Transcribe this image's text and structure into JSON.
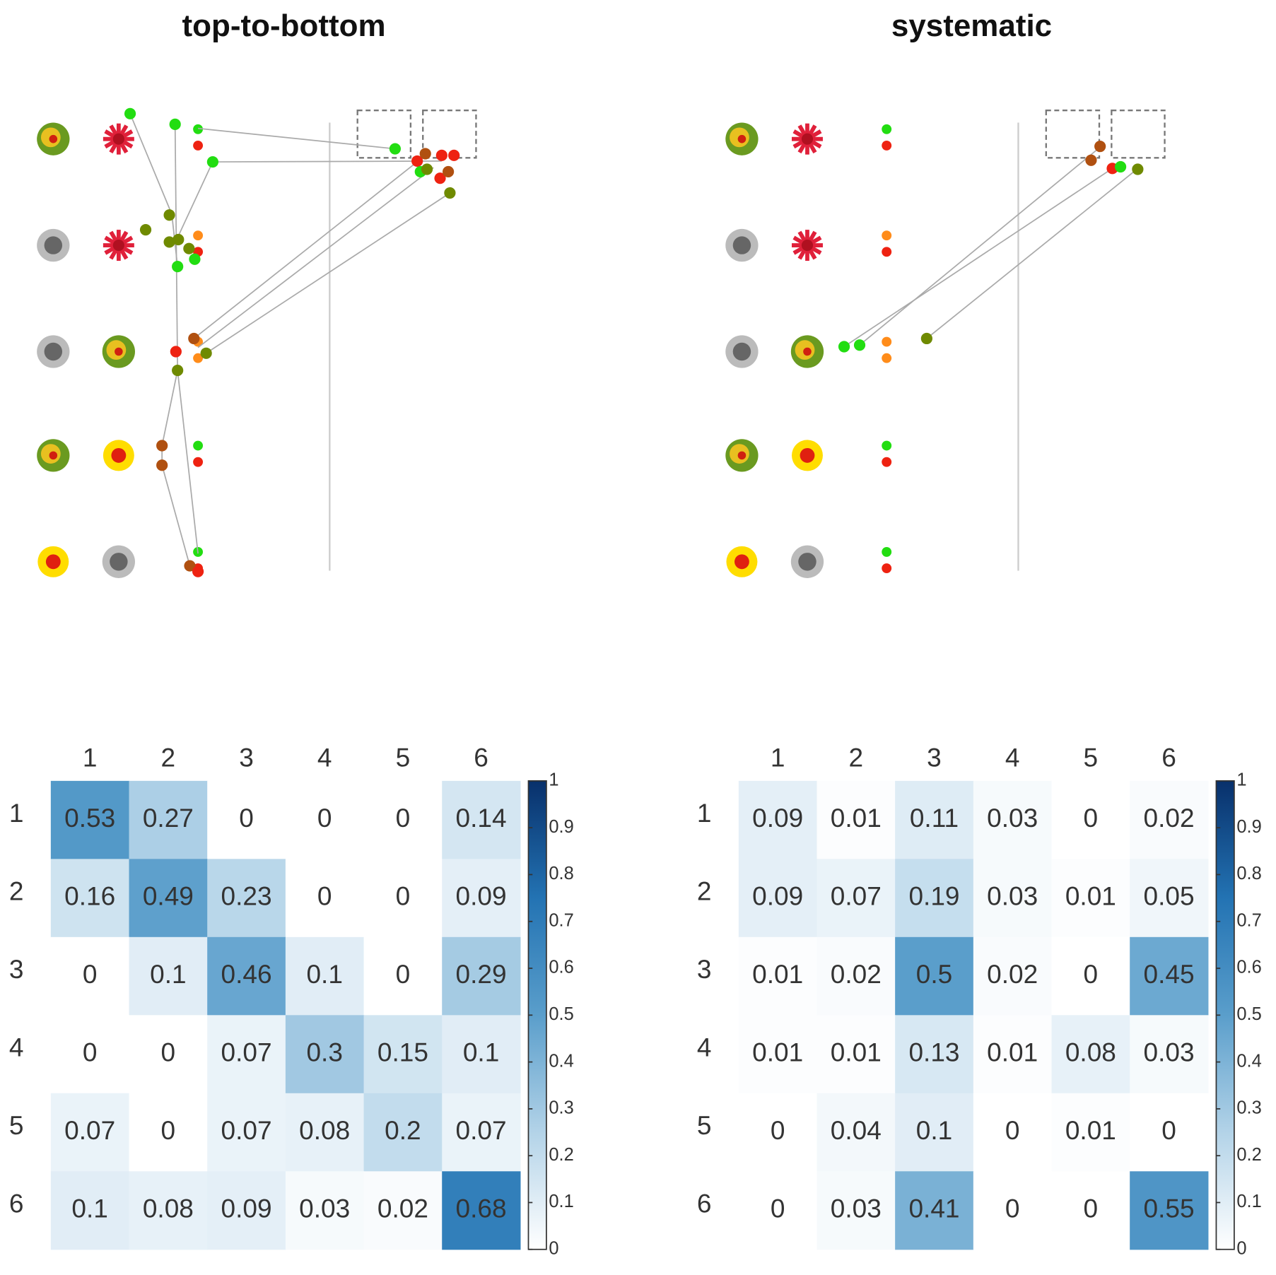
{
  "panels": [
    {
      "title": "top-to-bottom"
    },
    {
      "title": "systematic"
    }
  ],
  "chart_data": [
    {
      "type": "heatmap",
      "colormap": "Blues",
      "categories": [
        "1",
        "2",
        "3",
        "4",
        "5",
        "6"
      ],
      "rows": [
        "1",
        "2",
        "3",
        "4",
        "5",
        "6"
      ],
      "values": [
        [
          0.53,
          0.27,
          0,
          0,
          0,
          0.14
        ],
        [
          0.16,
          0.49,
          0.23,
          0,
          0,
          0.09
        ],
        [
          0,
          0.1,
          0.46,
          0.1,
          0,
          0.29
        ],
        [
          0,
          0,
          0.07,
          0.3,
          0.15,
          0.1
        ],
        [
          0.07,
          0,
          0.07,
          0.08,
          0.2,
          0.07
        ],
        [
          0.1,
          0.08,
          0.09,
          0.03,
          0.02,
          0.68
        ]
      ],
      "zlim": [
        0,
        1
      ],
      "zticks": [
        0,
        0.1,
        0.2,
        0.3,
        0.4,
        0.5,
        0.6,
        0.7,
        0.8,
        0.9,
        1
      ]
    },
    {
      "type": "heatmap",
      "colormap": "Blues",
      "categories": [
        "1",
        "2",
        "3",
        "4",
        "5",
        "6"
      ],
      "rows": [
        "1",
        "2",
        "3",
        "4",
        "5",
        "6"
      ],
      "values": [
        [
          0.09,
          0.01,
          0.11,
          0.03,
          0,
          0.02
        ],
        [
          0.09,
          0.07,
          0.19,
          0.03,
          0.01,
          0.05
        ],
        [
          0.01,
          0.02,
          0.5,
          0.02,
          0,
          0.45
        ],
        [
          0.01,
          0.01,
          0.13,
          0.01,
          0.08,
          0.03
        ],
        [
          0,
          0.04,
          0.1,
          0,
          0.01,
          0
        ],
        [
          0,
          0.03,
          0.41,
          0,
          0,
          0.55
        ]
      ],
      "zlim": [
        0,
        1
      ],
      "zticks": [
        0,
        0.1,
        0.2,
        0.3,
        0.4,
        0.5,
        0.6,
        0.7,
        0.8,
        0.9,
        1
      ]
    }
  ]
}
